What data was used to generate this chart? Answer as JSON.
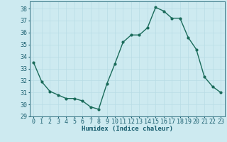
{
  "x": [
    0,
    1,
    2,
    3,
    4,
    5,
    6,
    7,
    8,
    9,
    10,
    11,
    12,
    13,
    14,
    15,
    16,
    17,
    18,
    19,
    20,
    21,
    22,
    23
  ],
  "y": [
    33.5,
    31.9,
    31.1,
    30.8,
    30.5,
    30.5,
    30.3,
    29.8,
    29.6,
    31.7,
    33.4,
    35.2,
    35.8,
    35.8,
    36.4,
    38.1,
    37.8,
    37.2,
    37.2,
    35.6,
    34.6,
    32.3,
    31.5,
    31.0
  ],
  "line_color": "#1a6b5a",
  "marker": "o",
  "marker_size": 2,
  "line_width": 1.0,
  "xlabel": "Humidex (Indice chaleur)",
  "xlim": [
    -0.5,
    23.5
  ],
  "ylim": [
    29,
    38.6
  ],
  "yticks": [
    29,
    30,
    31,
    32,
    33,
    34,
    35,
    36,
    37,
    38
  ],
  "xticks": [
    0,
    1,
    2,
    3,
    4,
    5,
    6,
    7,
    8,
    9,
    10,
    11,
    12,
    13,
    14,
    15,
    16,
    17,
    18,
    19,
    20,
    21,
    22,
    23
  ],
  "bg_color": "#cdeaf0",
  "grid_color": "#b8dde5",
  "font_color": "#1a5f70",
  "xlabel_fontsize": 6.5,
  "tick_fontsize": 6
}
